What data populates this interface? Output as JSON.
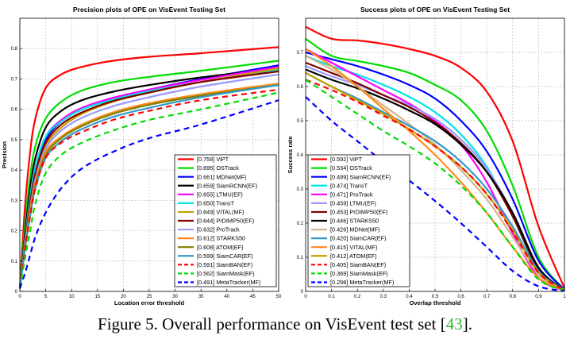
{
  "caption": {
    "prefix": "Figure 5. Overall performance on VisEvent test set [",
    "ref": "43",
    "suffix": "]."
  },
  "chart_data": [
    {
      "type": "line",
      "title": "Precision plots of OPE on VisEvent Testing Set",
      "xlabel": "Location error threshold",
      "ylabel": "Precision",
      "xlim": [
        0,
        50
      ],
      "ylim": [
        0,
        0.9
      ],
      "xticks": [
        0,
        5,
        10,
        15,
        20,
        25,
        30,
        35,
        40,
        45,
        50
      ],
      "yticks": [
        0,
        0.1,
        0.2,
        0.3,
        0.4,
        0.5,
        0.6,
        0.7,
        0.8
      ],
      "grid": true,
      "legend_position": "bottom-right",
      "x": [
        0,
        1,
        2,
        3,
        5,
        8,
        12,
        18,
        25,
        35,
        50
      ],
      "series": [
        {
          "name": "[0.758] ViPT",
          "color": "#ff0000",
          "dash": "solid",
          "values": [
            0.01,
            0.28,
            0.46,
            0.57,
            0.67,
            0.715,
            0.74,
            0.76,
            0.773,
            0.785,
            0.805
          ]
        },
        {
          "name": "[0.695] OSTrack",
          "color": "#00dd00",
          "dash": "solid",
          "values": [
            0.01,
            0.22,
            0.38,
            0.48,
            0.57,
            0.625,
            0.662,
            0.689,
            0.707,
            0.727,
            0.76
          ]
        },
        {
          "name": "[0.661] MDNet(MF)",
          "color": "#0000ff",
          "dash": "solid",
          "values": [
            0.01,
            0.16,
            0.3,
            0.4,
            0.5,
            0.56,
            0.6,
            0.635,
            0.665,
            0.7,
            0.745
          ]
        },
        {
          "name": "[0.659] SiamRCNN(EF)",
          "color": "#000000",
          "dash": "solid",
          "values": [
            0.01,
            0.19,
            0.34,
            0.44,
            0.54,
            0.595,
            0.63,
            0.658,
            0.68,
            0.705,
            0.735
          ]
        },
        {
          "name": "[0.655] LTMU(EF)",
          "color": "#ff00ff",
          "dash": "solid",
          "values": [
            0.01,
            0.17,
            0.31,
            0.41,
            0.51,
            0.565,
            0.605,
            0.638,
            0.665,
            0.697,
            0.74
          ]
        },
        {
          "name": "[0.650] TransT",
          "color": "#00e5e5",
          "dash": "solid",
          "values": [
            0.01,
            0.17,
            0.31,
            0.41,
            0.51,
            0.56,
            0.6,
            0.632,
            0.66,
            0.69,
            0.73
          ]
        },
        {
          "name": "[0.649] VITAL(MF)",
          "color": "#c8a000",
          "dash": "solid",
          "values": [
            0.01,
            0.15,
            0.28,
            0.38,
            0.48,
            0.54,
            0.585,
            0.625,
            0.655,
            0.69,
            0.735
          ]
        },
        {
          "name": "[0.644] PrDIMP50(EF)",
          "color": "#800000",
          "dash": "solid",
          "values": [
            0.01,
            0.16,
            0.29,
            0.39,
            0.49,
            0.55,
            0.59,
            0.627,
            0.655,
            0.69,
            0.725
          ]
        },
        {
          "name": "[0.632] ProTrack",
          "color": "#9999ff",
          "dash": "solid",
          "values": [
            0.01,
            0.15,
            0.27,
            0.37,
            0.47,
            0.53,
            0.572,
            0.61,
            0.64,
            0.675,
            0.715
          ]
        },
        {
          "name": "[0.612] STARKS50",
          "color": "#ff8c1a",
          "dash": "solid",
          "values": [
            0.01,
            0.15,
            0.27,
            0.36,
            0.46,
            0.51,
            0.55,
            0.59,
            0.62,
            0.65,
            0.685
          ]
        },
        {
          "name": "[0.608] ATOM(EF)",
          "color": "#808000",
          "dash": "solid",
          "values": [
            0.01,
            0.14,
            0.25,
            0.35,
            0.45,
            0.505,
            0.545,
            0.585,
            0.615,
            0.645,
            0.68
          ]
        },
        {
          "name": "[0.599] SiamCAR(EF)",
          "color": "#3399cc",
          "dash": "solid",
          "values": [
            0.01,
            0.14,
            0.25,
            0.34,
            0.44,
            0.495,
            0.535,
            0.575,
            0.605,
            0.64,
            0.68
          ]
        },
        {
          "name": "[0.591] SiamBAN(EF)",
          "color": "#ff0000",
          "dash": "dashed",
          "values": [
            0.01,
            0.14,
            0.25,
            0.34,
            0.44,
            0.49,
            0.525,
            0.565,
            0.595,
            0.63,
            0.665
          ]
        },
        {
          "name": "[0.562] SiamMask(EF)",
          "color": "#00dd00",
          "dash": "dashed",
          "values": [
            0.01,
            0.11,
            0.2,
            0.29,
            0.39,
            0.45,
            0.49,
            0.53,
            0.565,
            0.6,
            0.655
          ]
        },
        {
          "name": "[0.491] MetaTracker(MF)",
          "color": "#0000ff",
          "dash": "dashed",
          "values": [
            0.01,
            0.06,
            0.12,
            0.18,
            0.26,
            0.34,
            0.405,
            0.46,
            0.505,
            0.55,
            0.63
          ]
        }
      ]
    },
    {
      "type": "line",
      "title": "Success plots of OPE on VisEvent Testing Set",
      "xlabel": "Overlap threshold",
      "ylabel": "Success rate",
      "xlim": [
        0,
        1
      ],
      "ylim": [
        0,
        0.8
      ],
      "xticks": [
        0,
        0.1,
        0.2,
        0.3,
        0.4,
        0.5,
        0.6,
        0.7,
        0.8,
        0.9,
        1
      ],
      "yticks": [
        0,
        0.1,
        0.2,
        0.3,
        0.4,
        0.5,
        0.6,
        0.7
      ],
      "grid": true,
      "legend_position": "bottom-left",
      "x": [
        0,
        0.1,
        0.2,
        0.3,
        0.4,
        0.5,
        0.6,
        0.7,
        0.8,
        0.9,
        1
      ],
      "series": [
        {
          "name": "[0.592] ViPT",
          "color": "#ff0000",
          "dash": "solid",
          "values": [
            0.775,
            0.74,
            0.735,
            0.725,
            0.71,
            0.69,
            0.655,
            0.585,
            0.44,
            0.19,
            0.01
          ]
        },
        {
          "name": "[0.534] OSTrack",
          "color": "#00dd00",
          "dash": "solid",
          "values": [
            0.74,
            0.69,
            0.675,
            0.66,
            0.64,
            0.605,
            0.56,
            0.47,
            0.31,
            0.1,
            0.005
          ]
        },
        {
          "name": "[0.499] SiamRCNN(EF)",
          "color": "#0000ff",
          "dash": "solid",
          "values": [
            0.7,
            0.68,
            0.66,
            0.635,
            0.605,
            0.565,
            0.5,
            0.41,
            0.27,
            0.09,
            0.005
          ]
        },
        {
          "name": "[0.474] TransT",
          "color": "#00e5e5",
          "dash": "solid",
          "values": [
            0.69,
            0.66,
            0.635,
            0.605,
            0.57,
            0.525,
            0.46,
            0.365,
            0.22,
            0.06,
            0.003
          ]
        },
        {
          "name": "[0.471] ProTrack",
          "color": "#ff00ff",
          "dash": "solid",
          "values": [
            0.71,
            0.67,
            0.63,
            0.59,
            0.55,
            0.5,
            0.43,
            0.32,
            0.17,
            0.04,
            0.002
          ]
        },
        {
          "name": "[0.459] LTMU(EF)",
          "color": "#9999ff",
          "dash": "solid",
          "values": [
            0.66,
            0.63,
            0.605,
            0.575,
            0.545,
            0.505,
            0.445,
            0.36,
            0.23,
            0.07,
            0.004
          ]
        },
        {
          "name": "[0.453] PrDIMP50(EF)",
          "color": "#800000",
          "dash": "solid",
          "values": [
            0.67,
            0.64,
            0.61,
            0.575,
            0.54,
            0.495,
            0.435,
            0.35,
            0.22,
            0.065,
            0.003
          ]
        },
        {
          "name": "[0.446] STARKS50",
          "color": "#000000",
          "dash": "solid",
          "values": [
            0.65,
            0.62,
            0.595,
            0.565,
            0.53,
            0.49,
            0.43,
            0.35,
            0.23,
            0.07,
            0.003
          ]
        },
        {
          "name": "[0.426] MDNet(MF)",
          "color": "#d2b48c",
          "dash": "solid",
          "values": [
            0.69,
            0.65,
            0.6,
            0.545,
            0.49,
            0.43,
            0.355,
            0.27,
            0.16,
            0.05,
            0.002
          ]
        },
        {
          "name": "[0.420] SiamCAR(EF)",
          "color": "#3399cc",
          "dash": "solid",
          "values": [
            0.64,
            0.6,
            0.565,
            0.525,
            0.485,
            0.44,
            0.38,
            0.3,
            0.19,
            0.06,
            0.003
          ]
        },
        {
          "name": "[0.415] VITAL(MF)",
          "color": "#ff8c1a",
          "dash": "solid",
          "values": [
            0.71,
            0.66,
            0.6,
            0.535,
            0.47,
            0.4,
            0.32,
            0.23,
            0.13,
            0.04,
            0.002
          ]
        },
        {
          "name": "[0.412] ATOM(EF)",
          "color": "#c8a000",
          "dash": "solid",
          "values": [
            0.64,
            0.6,
            0.56,
            0.52,
            0.475,
            0.425,
            0.365,
            0.285,
            0.18,
            0.055,
            0.003
          ]
        },
        {
          "name": "[0.405] SiamBAN(EF)",
          "color": "#ff0000",
          "dash": "dashed",
          "values": [
            0.62,
            0.59,
            0.555,
            0.515,
            0.475,
            0.425,
            0.365,
            0.285,
            0.175,
            0.055,
            0.003
          ]
        },
        {
          "name": "[0.369] SiamMask(EF)",
          "color": "#00dd00",
          "dash": "dashed",
          "values": [
            0.62,
            0.57,
            0.52,
            0.47,
            0.425,
            0.375,
            0.31,
            0.23,
            0.13,
            0.035,
            0.002
          ]
        },
        {
          "name": "[0.298] MetaTracker(MF)",
          "color": "#0000ff",
          "dash": "dashed",
          "values": [
            0.57,
            0.5,
            0.44,
            0.38,
            0.325,
            0.265,
            0.2,
            0.13,
            0.06,
            0.015,
            0.001
          ]
        }
      ]
    }
  ]
}
